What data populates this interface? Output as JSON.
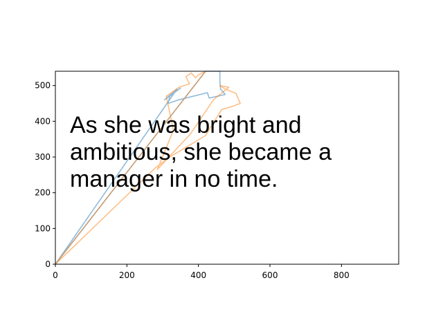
{
  "chart_data": {
    "type": "line",
    "title": "",
    "xlabel": "",
    "ylabel": "",
    "xlim": [
      0,
      960
    ],
    "ylim": [
      0,
      540
    ],
    "xticks": [
      0,
      200,
      400,
      600,
      800
    ],
    "yticks": [
      0,
      100,
      200,
      300,
      400,
      500
    ],
    "grid": false,
    "annotation_lines": [
      "As she was bright and",
      "ambitious, she became a",
      "manager in no time."
    ],
    "series": [
      {
        "color": "#1f77b4",
        "alpha": 0.5,
        "points": [
          [
            0,
            0
          ],
          [
            420,
            540
          ],
          [
            460,
            540
          ],
          [
            460,
            510
          ],
          [
            462,
            490
          ],
          [
            475,
            475
          ],
          [
            430,
            465
          ],
          [
            425,
            480
          ],
          [
            345,
            460
          ],
          [
            315,
            450
          ],
          [
            320,
            470
          ],
          [
            350,
            493
          ],
          [
            305,
            460
          ],
          [
            340,
            490
          ],
          [
            0,
            0
          ]
        ]
      },
      {
        "color": "#ff7f0e",
        "alpha": 0.5,
        "points": [
          [
            0,
            0
          ],
          [
            280,
            270
          ],
          [
            320,
            300
          ],
          [
            420,
            360
          ],
          [
            465,
            433
          ],
          [
            490,
            440
          ],
          [
            517,
            450
          ],
          [
            505,
            478
          ],
          [
            475,
            490
          ],
          [
            460,
            500
          ],
          [
            485,
            495
          ],
          [
            442,
            460
          ],
          [
            378,
            365
          ],
          [
            285,
            265
          ],
          [
            330,
            375
          ],
          [
            310,
            470
          ],
          [
            345,
            495
          ],
          [
            375,
            505
          ],
          [
            365,
            525
          ],
          [
            380,
            535
          ],
          [
            392,
            522
          ],
          [
            400,
            530
          ],
          [
            420,
            540
          ],
          [
            0,
            0
          ]
        ]
      }
    ]
  }
}
